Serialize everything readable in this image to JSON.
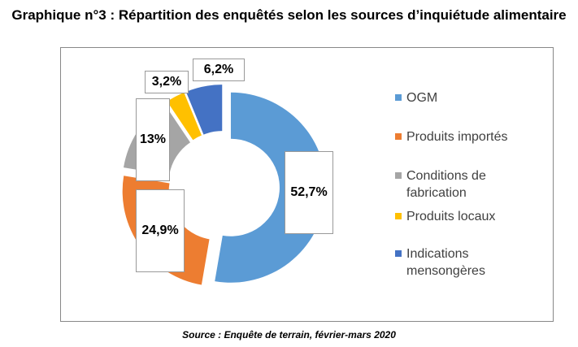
{
  "title": "Graphique n°3 : Répartition des enquêtés selon les sources d’inquiétude alimentaire",
  "source": "Source : Enquête de terrain, février-mars 2020",
  "chart_data": {
    "type": "pie",
    "donut": true,
    "categories": [
      "OGM",
      "Produits importés",
      "Conditions de fabrication",
      "Produits locaux",
      "Indications mensongères"
    ],
    "values": [
      52.7,
      24.9,
      13,
      3.2,
      6.2
    ],
    "data_labels": [
      "52,7%",
      "24,9%",
      "13%",
      "3,2%",
      "6,2%"
    ],
    "colors": [
      "#5b9bd5",
      "#ed7d31",
      "#a5a5a5",
      "#ffc000",
      "#4472c4"
    ],
    "legend": "right",
    "title": "Graphique n°3 : Répartition des enquêtés selon les sources d’inquiétude alimentaire"
  }
}
